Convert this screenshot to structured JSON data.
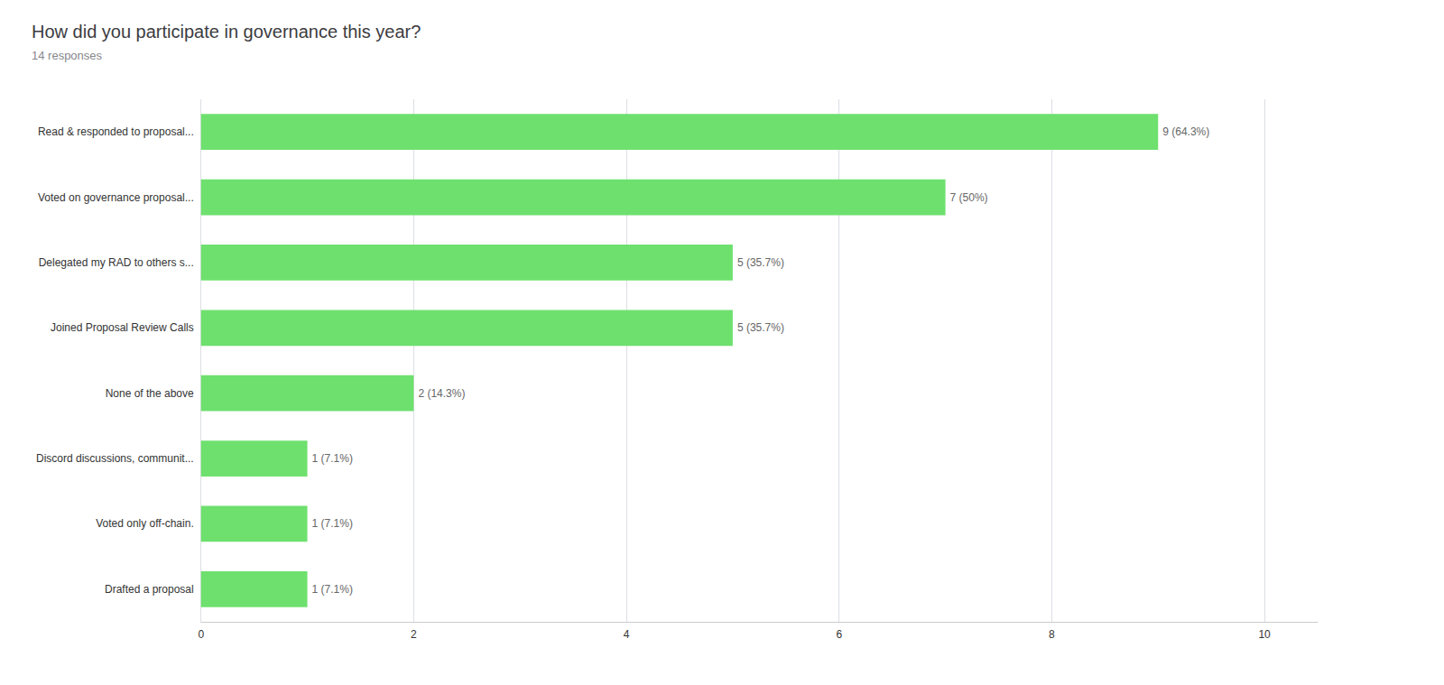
{
  "chart_data": {
    "type": "bar",
    "orientation": "horizontal",
    "title": "How did you participate in governance this year?",
    "subtitle": "14 responses",
    "categories": [
      "Drafted a proposal",
      "Voted only off-chain.",
      "Discord discussions, communit...",
      "None of the above",
      "Joined Proposal Review Calls",
      "Delegated my RAD to others s...",
      "Voted on governance proposal...",
      "Read & responded to proposal..."
    ],
    "values": [
      1,
      1,
      1,
      2,
      5,
      5,
      7,
      9
    ],
    "value_labels": [
      "1 (7.1%)",
      "1 (7.1%)",
      "1 (7.1%)",
      "2 (14.3%)",
      "5 (35.7%)",
      "5 (35.7%)",
      "7 (50%)",
      "9 (64.3%)"
    ],
    "data_labels": true,
    "color": "#6ee06e",
    "xlim": [
      0,
      10.5
    ],
    "xticks": [
      0,
      2,
      4,
      6,
      8,
      10
    ],
    "grid": true
  }
}
